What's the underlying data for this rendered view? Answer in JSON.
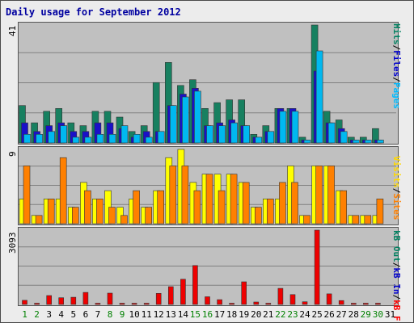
{
  "chart_data": {
    "type": "bar",
    "title": "Daily usage for September 2012",
    "categories": [
      "1",
      "2",
      "3",
      "4",
      "5",
      "6",
      "7",
      "8",
      "9",
      "10",
      "11",
      "12",
      "13",
      "14",
      "15",
      "16",
      "17",
      "18",
      "19",
      "20",
      "21",
      "22",
      "23",
      "24",
      "25",
      "26",
      "27",
      "28",
      "29",
      "30",
      "31"
    ],
    "weekend_days": [
      "1",
      "2",
      "8",
      "9",
      "15",
      "16",
      "22",
      "23",
      "29",
      "30"
    ],
    "panels": [
      {
        "id": "hits",
        "ymax_label": "41",
        "ymax": 41,
        "legend": [
          {
            "text": "Pages",
            "color": "#00bbff"
          },
          {
            "text": "Files",
            "color": "#0000cc"
          },
          {
            "text": "Hits",
            "color": "#008060"
          }
        ],
        "series": [
          {
            "name": "Hits",
            "color": "#178060",
            "values": [
              13,
              7,
              11,
              12,
              7,
              6,
              11,
              11,
              9,
              4,
              6,
              21,
              28,
              20,
              22,
              12,
              14,
              15,
              15,
              3,
              6,
              12,
              12,
              2,
              41,
              11,
              8,
              2,
              2,
              5,
              0
            ]
          },
          {
            "name": "Files",
            "color": "#1a10c8",
            "values": [
              7,
              4,
              6,
              7,
              4,
              4,
              7,
              7,
              5,
              2,
              4,
              4,
              13,
              17,
              19,
              6,
              7,
              8,
              6,
              2,
              4,
              12,
              12,
              1,
              25,
              7,
              5,
              1,
              1,
              1,
              0
            ]
          },
          {
            "name": "Pages",
            "color": "#00b8f0",
            "values": [
              3,
              3,
              4,
              6,
              2,
              2,
              3,
              3,
              6,
              3,
              2,
              4,
              13,
              16,
              18,
              6,
              6,
              7,
              6,
              2,
              4,
              11,
              11,
              1,
              32,
              7,
              4,
              1,
              1,
              1,
              0
            ]
          }
        ]
      },
      {
        "id": "sites",
        "ymax_label": "9",
        "ymax": 9,
        "legend": [
          {
            "text": "Sites",
            "color": "#ff8000"
          },
          {
            "text": "Visits",
            "color": "#ffd800"
          }
        ],
        "series": [
          {
            "name": "Visits",
            "color": "#ffff00",
            "values": [
              3,
              1,
              3,
              3,
              2,
              5,
              3,
              4,
              2,
              3,
              2,
              4,
              8,
              9,
              5,
              6,
              6,
              6,
              5,
              2,
              3,
              3,
              7,
              1,
              7,
              7,
              4,
              1,
              1,
              1,
              0
            ]
          },
          {
            "name": "Sites",
            "color": "#ff8000",
            "values": [
              7,
              1,
              3,
              8,
              2,
              4,
              3,
              2,
              1,
              4,
              2,
              4,
              7,
              7,
              4,
              6,
              4,
              6,
              5,
              2,
              3,
              5,
              5,
              1,
              7,
              7,
              4,
              1,
              1,
              3,
              0
            ]
          }
        ]
      },
      {
        "id": "kb",
        "ymax_label": "3093",
        "ymax": 3093,
        "legend": [
          {
            "text": "kB F",
            "color": "#ff0000"
          },
          {
            "text": "kB In",
            "color": "#0000cc"
          },
          {
            "text": "kB Out",
            "color": "#008060"
          }
        ],
        "series": [
          {
            "name": "kB F",
            "color": "#ee0000",
            "values": [
              170,
              50,
              370,
              280,
              300,
              500,
              50,
              470,
              50,
              50,
              50,
              460,
              740,
              1050,
              1620,
              320,
              200,
              50,
              940,
              100,
              50,
              670,
              410,
              110,
              3093,
              440,
              160,
              50,
              50,
              50,
              0
            ]
          }
        ]
      }
    ],
    "xlabel_colors": {
      "weekday": "#000000",
      "weekend": "#008000"
    }
  }
}
